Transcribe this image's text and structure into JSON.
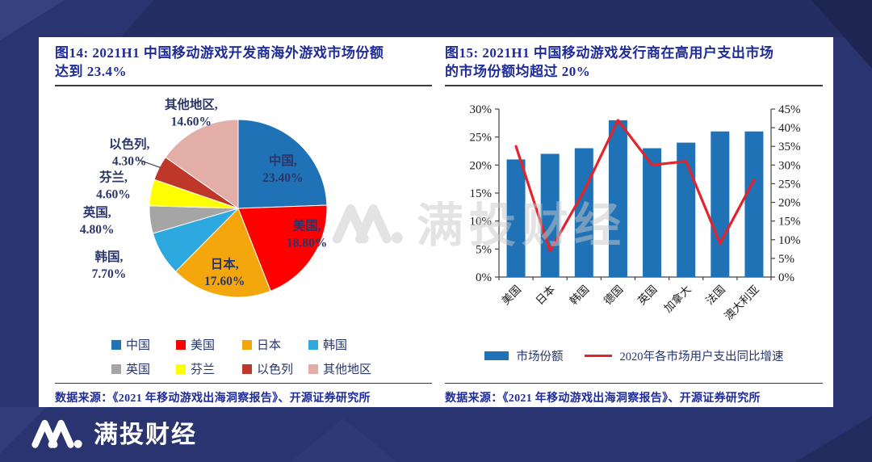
{
  "brand": {
    "name": "满投财经",
    "watermark": "满投财经"
  },
  "figures": {
    "left": {
      "title_line1": "图14: 2021H1 中国移动游戏开发商海外游戏市场份额",
      "title_line2": "达到 23.4%",
      "source": "数据来源：《2021 年移动游戏出海洞察报告》、开源证券研究所"
    },
    "right": {
      "title_line1": "图15: 2021H1 中国移动游戏发行商在高用户支出市场",
      "title_line2": "的市场份额均超过 20%",
      "source": "数据来源：《2021 年移动游戏出海洞察报告》、开源证券研究所"
    }
  },
  "chart_data": [
    {
      "type": "pie",
      "title": "2021H1 中国移动游戏开发商海外游戏市场份额",
      "labels": [
        "中国",
        "美国",
        "日本",
        "韩国",
        "英国",
        "芬兰",
        "以色列",
        "其他地区"
      ],
      "values": [
        23.4,
        18.8,
        17.6,
        7.7,
        4.8,
        4.6,
        4.3,
        14.6
      ],
      "colors": [
        "#1F72B5",
        "#FE0000",
        "#F4A70D",
        "#2EA9E0",
        "#A5A5A5",
        "#FFFF00",
        "#BF3728",
        "#E3ADA8"
      ],
      "label_color": "#2a3568",
      "start_angle_deg": 0,
      "direction": "clockwise",
      "legend_position": "bottom"
    },
    {
      "type": "bar+line",
      "title": "2021H1 中国移动游戏发行商在高用户支出市场的市场份额",
      "categories": [
        "美国",
        "日本",
        "韩国",
        "德国",
        "英国",
        "加拿大",
        "法国",
        "澳大利亚"
      ],
      "series": [
        {
          "name": "市场份额",
          "type": "bar",
          "axis": "left",
          "color": "#1F72B5",
          "values": [
            21,
            22,
            23,
            28,
            23,
            24,
            26,
            26
          ]
        },
        {
          "name": "2020年各市场用户支出同比增速",
          "type": "line",
          "axis": "right",
          "color": "#E3242B",
          "values": [
            35,
            7,
            23,
            42,
            30,
            31,
            9,
            26
          ]
        }
      ],
      "left_axis": {
        "min": 0,
        "max": 30,
        "step": 5,
        "tick_labels": [
          "0%",
          "5%",
          "10%",
          "15%",
          "20%",
          "25%",
          "30%"
        ]
      },
      "right_axis": {
        "min": 0,
        "max": 45,
        "step": 5,
        "tick_labels": [
          "0%",
          "5%",
          "10%",
          "15%",
          "20%",
          "25%",
          "30%",
          "35%",
          "40%",
          "45%"
        ]
      },
      "grid": false,
      "legend_position": "bottom"
    }
  ]
}
